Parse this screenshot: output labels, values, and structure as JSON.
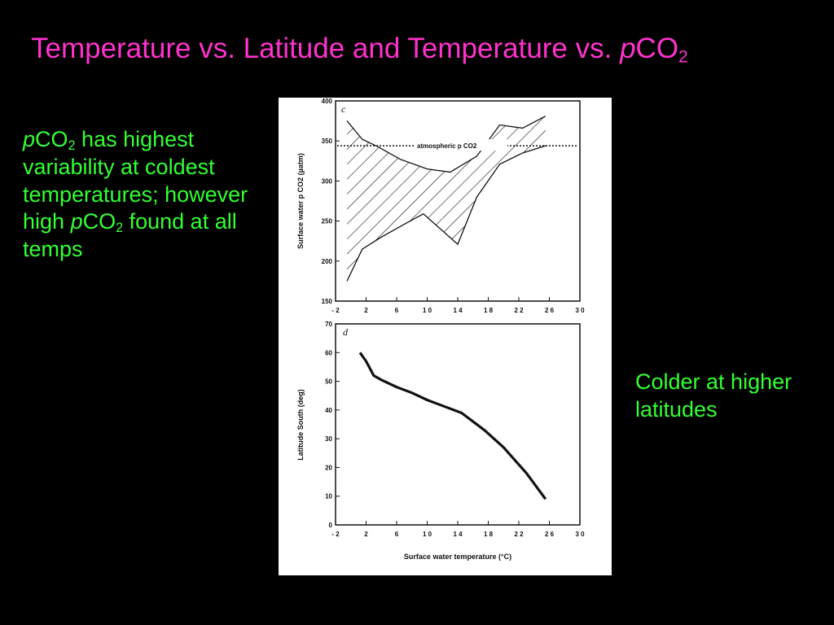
{
  "slide": {
    "title_prefix": "Temperature vs. Latitude and Temperature vs. ",
    "title_p": "p",
    "title_co": "CO",
    "title_sub": "2"
  },
  "note_left": {
    "p1": "p",
    "co1": "CO",
    "sub1": "2",
    "text1": " has highest variability at coldest temperatures; however high ",
    "p2": "p",
    "co2": "CO",
    "sub2": "2",
    "text2": " found at all temps"
  },
  "note_right": {
    "text": "Colder at higher latitudes"
  },
  "chart_data": [
    {
      "type": "area",
      "panel_label": "c",
      "xlabel": "",
      "ylabel": "Surface water p CO2 (µatm)",
      "xlim": [
        -2,
        30
      ],
      "ylim": [
        150,
        400
      ],
      "x_ticks": [
        "- 2",
        "2",
        "6",
        "1 0",
        "1 4",
        "1 8",
        "2 2",
        "2 6",
        "3 0"
      ],
      "y_ticks": [
        150,
        200,
        250,
        300,
        350,
        400
      ],
      "reference_line": {
        "label": "atmospheric p CO2",
        "value": 344
      },
      "upper_bound": {
        "x": [
          -0.5,
          1.5,
          3.5,
          6.5,
          10,
          13,
          16.5,
          19.5,
          22.5,
          25.5
        ],
        "y": [
          375,
          352,
          343,
          327,
          315,
          311,
          331,
          370,
          366,
          381
        ]
      },
      "lower_bound": {
        "x": [
          -0.5,
          1.5,
          4,
          7,
          9.5,
          14,
          16.5,
          19.5,
          22.5,
          25.5
        ],
        "y": [
          175,
          215,
          230,
          246,
          259,
          221,
          280,
          321,
          335,
          344
        ]
      },
      "grid": false
    },
    {
      "type": "line",
      "panel_label": "d",
      "xlabel": "Surface water temperature (°C)",
      "ylabel": "Latitude South (deg)",
      "xlim": [
        -2,
        30
      ],
      "ylim": [
        0,
        70
      ],
      "x_ticks": [
        "- 2",
        "2",
        "6",
        "1 0",
        "1 4",
        "1 8",
        "2 2",
        "2 6",
        "3 0"
      ],
      "y_ticks": [
        0,
        10,
        20,
        30,
        40,
        50,
        60,
        70
      ],
      "series": [
        {
          "x": [
            1.2,
            2,
            3,
            4,
            6,
            8,
            10,
            12,
            14.5,
            17.5,
            20,
            23,
            25.5
          ],
          "y": [
            60,
            57,
            52,
            50.5,
            48,
            46,
            43.5,
            41.5,
            39,
            33,
            27,
            18,
            9
          ]
        }
      ],
      "grid": false
    }
  ]
}
